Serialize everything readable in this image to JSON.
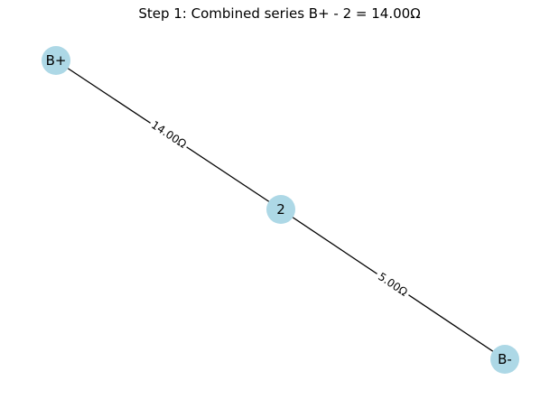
{
  "diagram": {
    "title": "Step 1: Combined series B+ - 2 = 14.00Ω",
    "nodes": [
      {
        "id": "Bplus",
        "label": "B+"
      },
      {
        "id": "n2",
        "label": "2"
      },
      {
        "id": "Bminus",
        "label": "B-"
      }
    ],
    "edges": [
      {
        "from": "Bplus",
        "to": "n2",
        "label": "14.00Ω"
      },
      {
        "from": "n2",
        "to": "Bminus",
        "label": "5.00Ω"
      }
    ],
    "colors": {
      "node_fill": "#add8e6",
      "edge": "#000000"
    }
  }
}
